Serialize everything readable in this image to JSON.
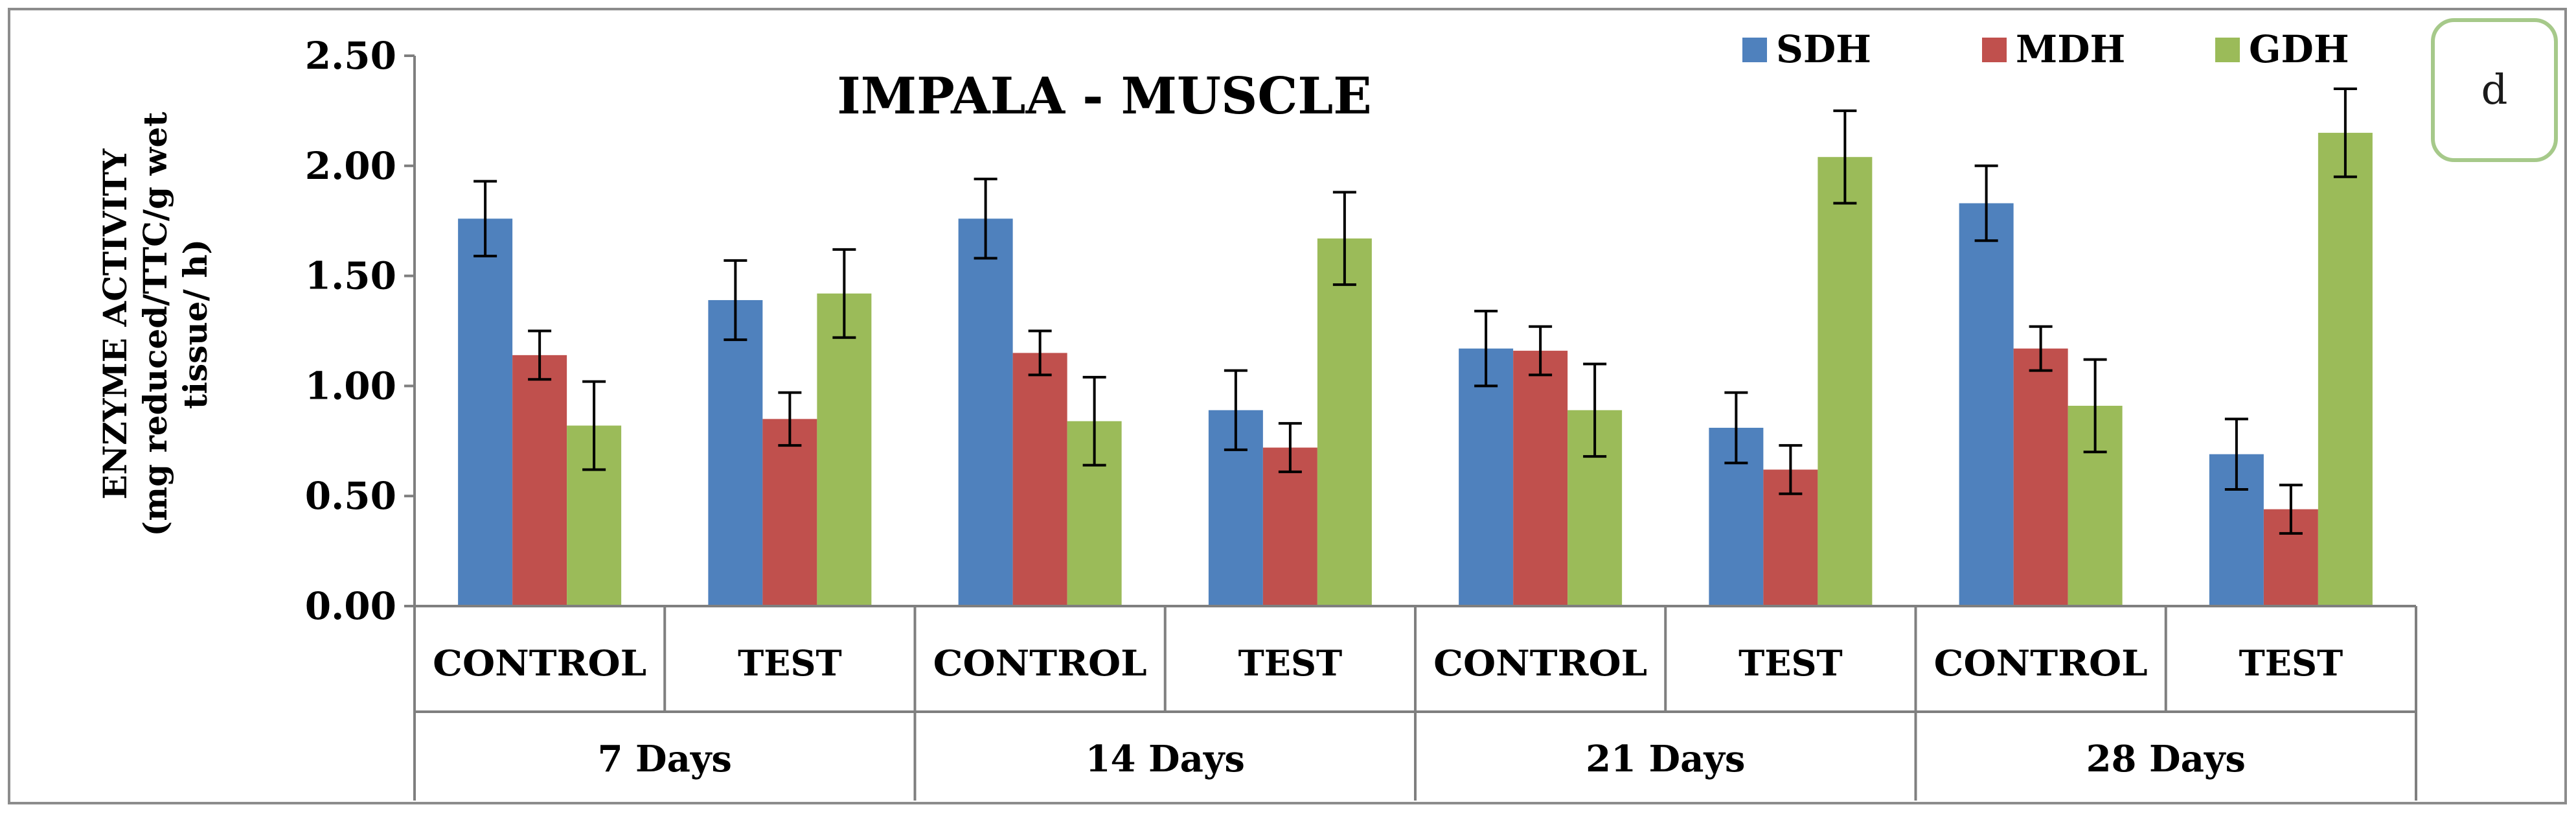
{
  "panel_label": "d",
  "chart_data": {
    "type": "bar",
    "title": "IMPALA  - MUSCLE",
    "ylabel_line1": "ENZYME ACTIVITY",
    "ylabel_line2": "(mg reduced/TTC/g wet",
    "ylabel_line3": "tissue/ h)",
    "xlabel": "",
    "ylim": [
      0,
      2.5
    ],
    "yticks": [
      "0.00",
      "0.50",
      "1.00",
      "1.50",
      "2.00",
      "2.50"
    ],
    "grid": false,
    "legend_position": "top-right",
    "groups": [
      "7 Days",
      "14 Days",
      "21 Days",
      "28 Days"
    ],
    "categories": [
      "CONTROL",
      "TEST",
      "CONTROL",
      "TEST",
      "CONTROL",
      "TEST",
      "CONTROL",
      "TEST"
    ],
    "series": [
      {
        "name": "SDH",
        "color": "#4f81bd",
        "values": [
          1.76,
          1.39,
          1.76,
          0.89,
          1.17,
          0.81,
          1.83,
          0.69
        ],
        "errors": [
          0.17,
          0.18,
          0.18,
          0.18,
          0.17,
          0.16,
          0.17,
          0.16
        ]
      },
      {
        "name": "MDH",
        "color": "#c0504d",
        "values": [
          1.14,
          0.85,
          1.15,
          0.72,
          1.16,
          0.62,
          1.17,
          0.44
        ],
        "errors": [
          0.11,
          0.12,
          0.1,
          0.11,
          0.11,
          0.11,
          0.1,
          0.11
        ]
      },
      {
        "name": "GDH",
        "color": "#9bbb59",
        "values": [
          0.82,
          1.42,
          0.84,
          1.67,
          0.89,
          2.04,
          0.91,
          2.15
        ],
        "errors": [
          0.2,
          0.2,
          0.2,
          0.21,
          0.21,
          0.21,
          0.21,
          0.2
        ]
      }
    ]
  }
}
